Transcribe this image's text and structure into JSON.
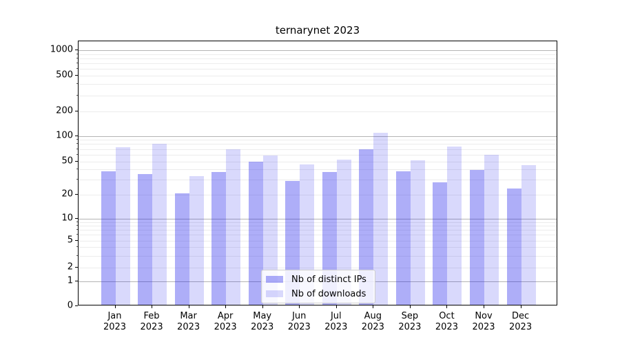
{
  "chart_data": {
    "type": "bar",
    "title": "ternarynet 2023",
    "categories": [
      "Jan",
      "Feb",
      "Mar",
      "Apr",
      "May",
      "Jun",
      "Jul",
      "Aug",
      "Sep",
      "Oct",
      "Nov",
      "Dec"
    ],
    "x_year_sublabel": "2023",
    "series": [
      {
        "name": "Nb of distinct IPs",
        "color": "rgba(30,30,235,0.36)",
        "values": [
          37,
          34,
          20,
          36,
          48,
          28,
          36,
          68,
          37,
          27,
          38,
          23
        ]
      },
      {
        "name": "Nb of downloads",
        "color": "rgba(30,30,235,0.17)",
        "values": [
          71,
          79,
          32,
          68,
          57,
          45,
          51,
          106,
          50,
          73,
          58,
          44
        ]
      }
    ],
    "yscale": "symlog",
    "ylim": [
      0,
      1300
    ],
    "yticks": [
      0,
      1,
      2,
      5,
      10,
      20,
      50,
      100,
      200,
      500,
      1000
    ],
    "minor_yticks": [
      3,
      4,
      6,
      7,
      8,
      9,
      30,
      40,
      60,
      70,
      80,
      90,
      300,
      400,
      600,
      700,
      800,
      900
    ],
    "grid": true,
    "legend_position": "bottom-center"
  },
  "colors": {
    "grid_major": "#b3b3b3",
    "grid_minor": "#ececec",
    "spine": "#000000",
    "legend_border": "#cccccc"
  }
}
